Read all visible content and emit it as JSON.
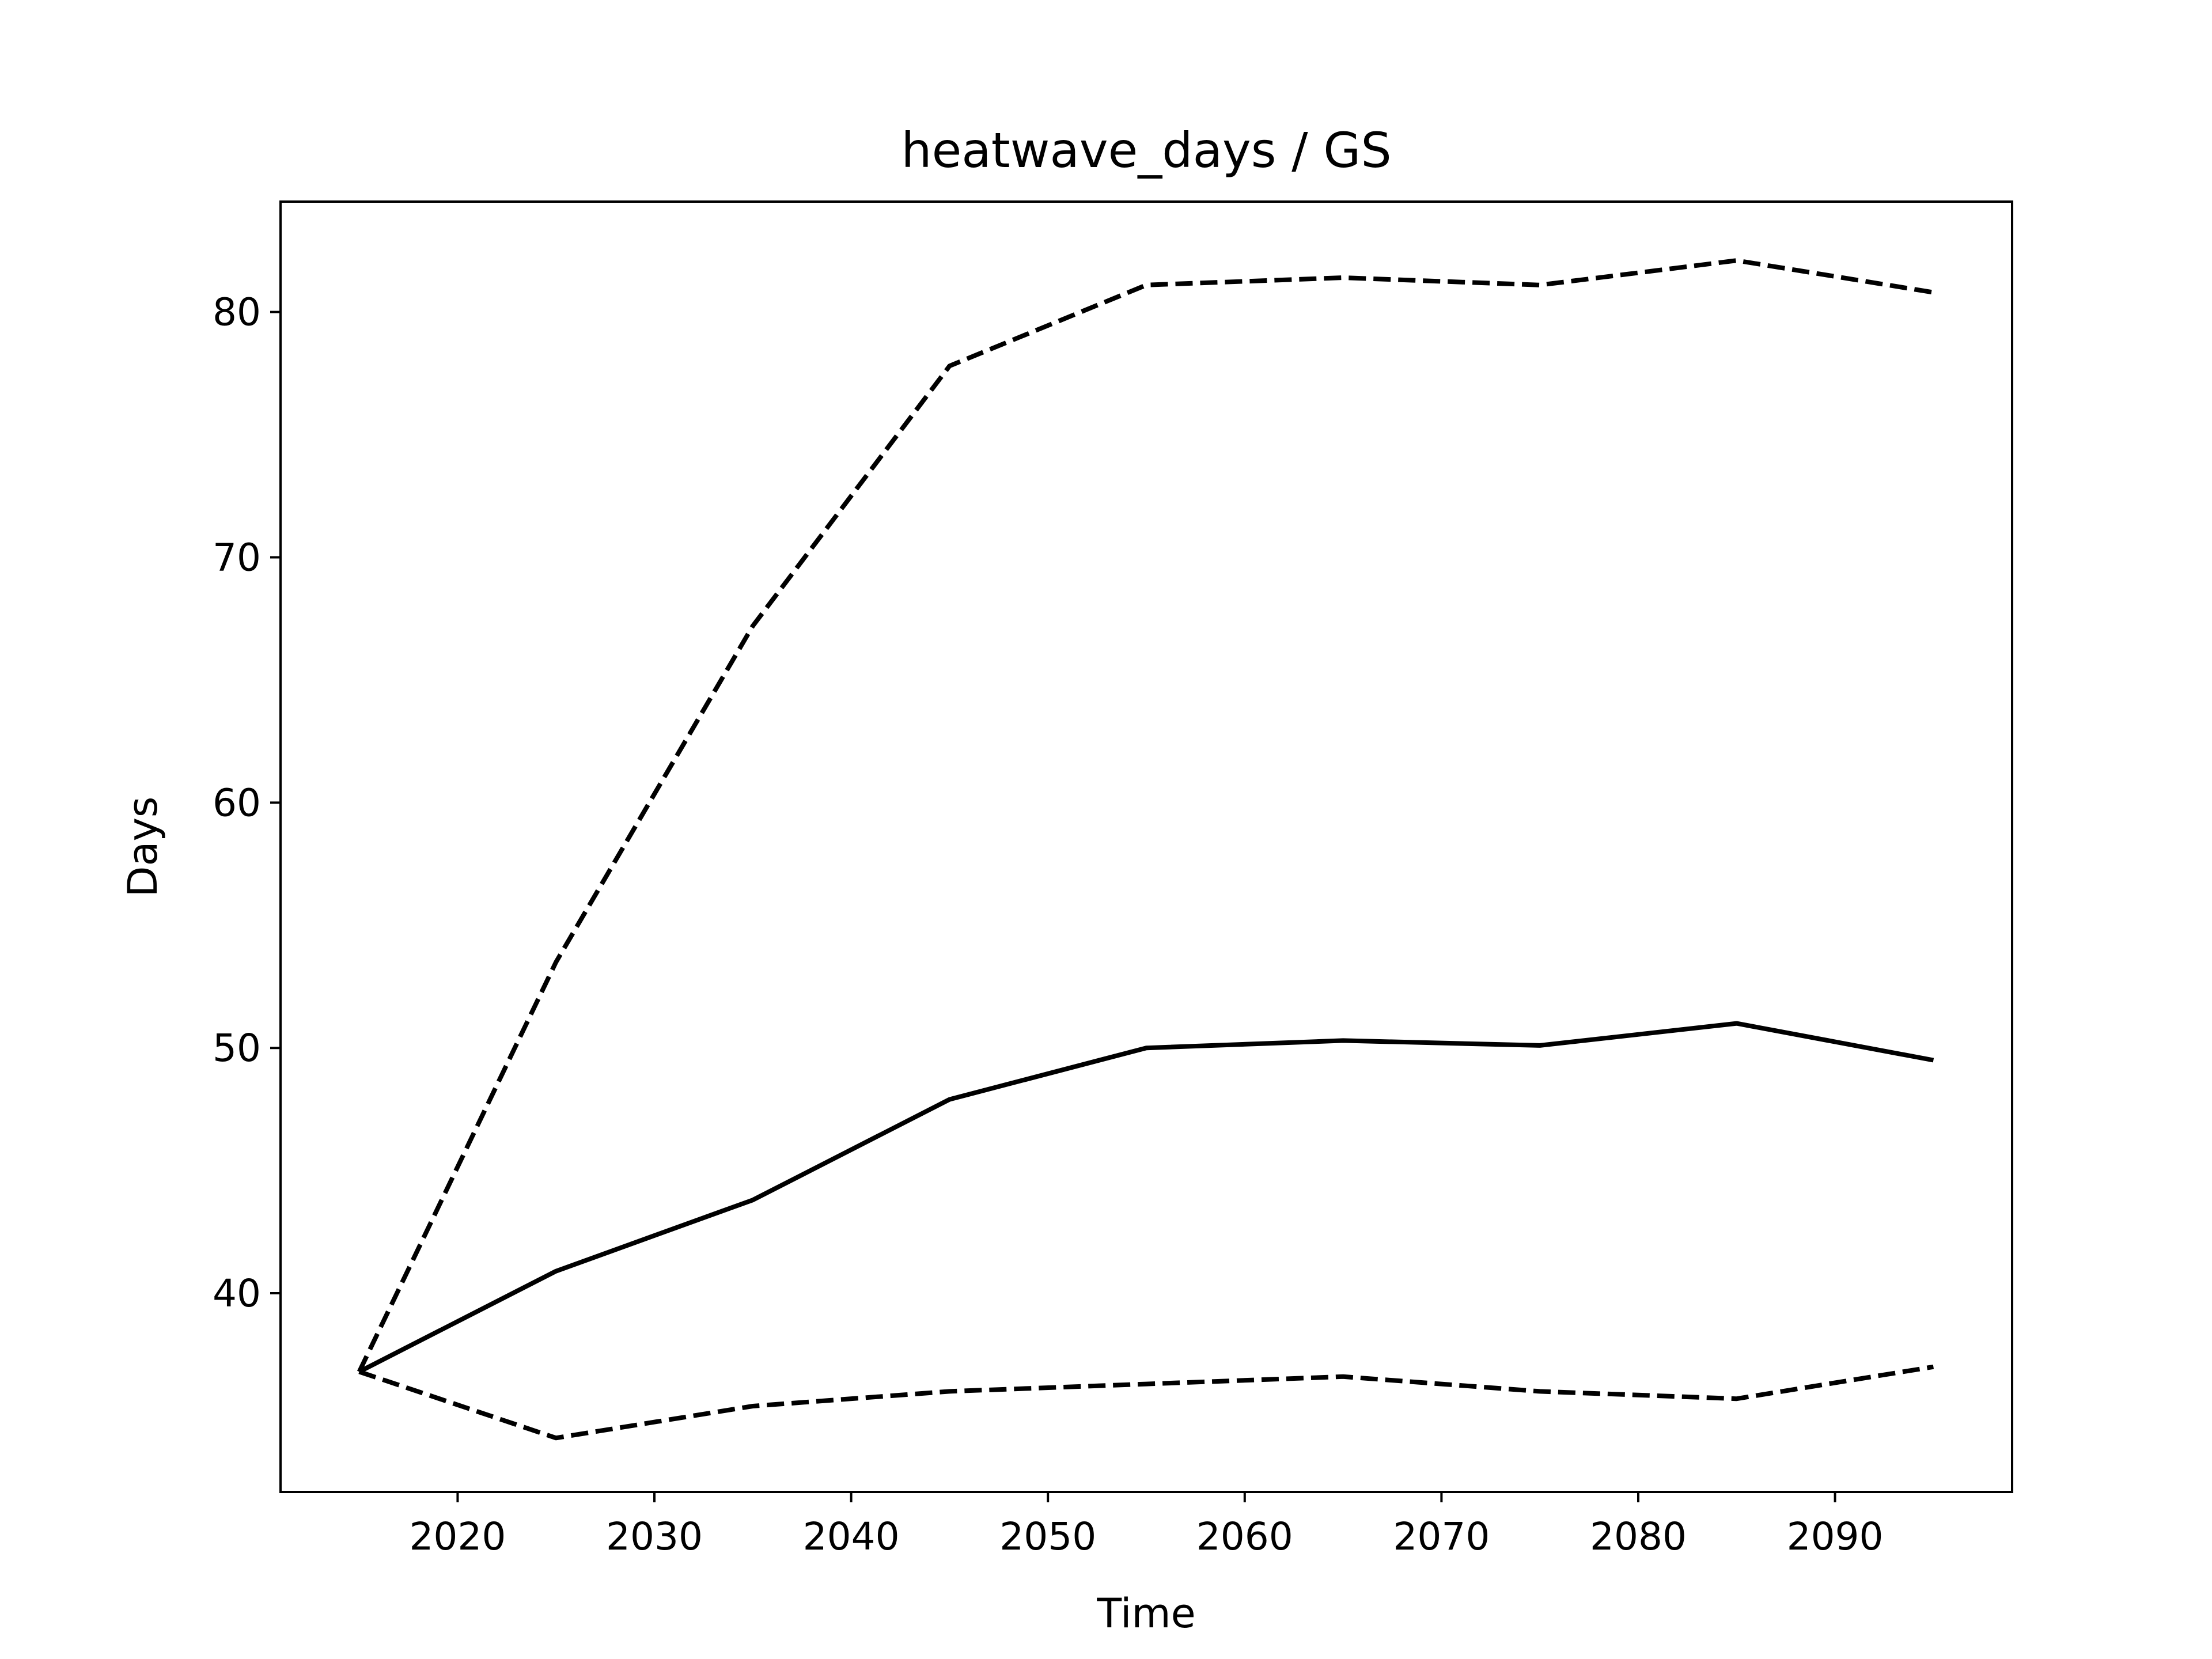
{
  "chart_data": {
    "type": "line",
    "title": "heatwave_days / GS",
    "xlabel": "Time",
    "ylabel": "Days",
    "xlim": [
      2011,
      2099
    ],
    "ylim": [
      31.9,
      84.5
    ],
    "xticks": [
      2020,
      2030,
      2040,
      2050,
      2060,
      2070,
      2080,
      2090
    ],
    "xtick_labels": [
      "2020",
      "2030",
      "2040",
      "2050",
      "2060",
      "2070",
      "2080",
      "2090"
    ],
    "yticks": [
      40,
      50,
      60,
      70,
      80
    ],
    "ytick_labels": [
      "40",
      "50",
      "60",
      "70",
      "80"
    ],
    "grid": false,
    "legend": false,
    "x": [
      2015,
      2025,
      2035,
      2045,
      2055,
      2065,
      2075,
      2085,
      2095
    ],
    "series": [
      {
        "style": "solid",
        "color": "#000000",
        "values": [
          36.8,
          40.9,
          43.8,
          47.9,
          50.0,
          50.3,
          50.1,
          51.0,
          49.5
        ]
      },
      {
        "style": "dashed",
        "color": "#000000",
        "values": [
          36.8,
          53.5,
          67.2,
          77.8,
          81.1,
          81.4,
          81.1,
          82.1,
          80.8
        ]
      },
      {
        "style": "dashed",
        "color": "#000000",
        "values": [
          36.8,
          34.1,
          35.4,
          36.0,
          36.3,
          36.6,
          36.0,
          35.7,
          37.0
        ]
      }
    ]
  }
}
